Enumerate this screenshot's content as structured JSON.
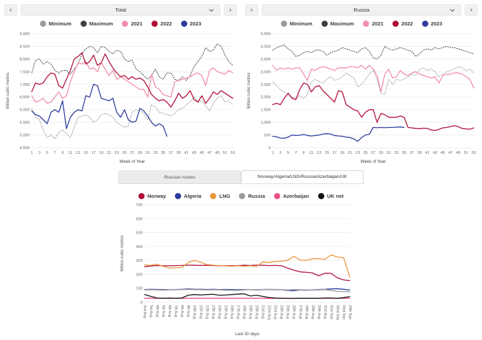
{
  "icons": {
    "prev": "‹",
    "next": "›"
  },
  "top_left": {
    "selector": "Total",
    "chart_data": {
      "type": "line",
      "title": "Total",
      "ylabel": "Million cubic metres",
      "xlabel": "Week of Year",
      "ylim": [
        4500,
        9000
      ],
      "y_step": 500,
      "grid": true,
      "legend_position": "top",
      "x_count": 53,
      "x_tick_every": 2,
      "x_tick_rotate": 0,
      "x_ticks": [
        "1",
        "3",
        "5",
        "7",
        "9",
        "11",
        "13",
        "15",
        "17",
        "19",
        "21",
        "23",
        "25",
        "27",
        "29",
        "31",
        "33",
        "35",
        "37",
        "39",
        "41",
        "43",
        "45",
        "47",
        "49",
        "51",
        "53"
      ],
      "series": [
        {
          "name": "Minimum",
          "color": "#9b9b9b",
          "dash": true,
          "values": [
            6050,
            5700,
            5600,
            5200,
            4900,
            5000,
            4850,
            5100,
            5200,
            5050,
            4900,
            5300,
            5700,
            5750,
            5800,
            5700,
            5500,
            5600,
            5800,
            5850,
            5800,
            5700,
            5500,
            5400,
            5300,
            5350,
            5900,
            6000,
            5950,
            5850,
            5600,
            6200,
            6100,
            5900,
            5850,
            5800,
            5750,
            5850,
            6000,
            6050,
            6200,
            6300,
            6500,
            6300,
            6350,
            6150,
            5950,
            6250,
            6450,
            6550,
            6300,
            6350,
            6200
          ]
        },
        {
          "name": "Maximum",
          "color": "#3f3f3f",
          "dash": true,
          "values": [
            7450,
            7950,
            8000,
            7800,
            7900,
            7800,
            7550,
            7450,
            7550,
            7550,
            7400,
            7600,
            7800,
            8200,
            8400,
            8500,
            8450,
            8250,
            8500,
            8450,
            8300,
            8200,
            8350,
            8300,
            8000,
            7900,
            7950,
            7600,
            7500,
            7350,
            7200,
            7350,
            7600,
            7300,
            7200,
            7450,
            7450,
            7200,
            7150,
            7300,
            7150,
            7350,
            7700,
            7900,
            8100,
            8450,
            8300,
            8350,
            8600,
            8500,
            8150,
            7900,
            7750
          ]
        },
        {
          "name": "2021",
          "color": "#f18ea8",
          "dash": false,
          "values": [
            6550,
            6300,
            6350,
            6450,
            6250,
            6300,
            6500,
            6700,
            6450,
            6550,
            7100,
            7500,
            7850,
            7800,
            7900,
            7600,
            7650,
            7500,
            7850,
            7600,
            7350,
            7550,
            7200,
            7300,
            7200,
            7100,
            7000,
            6900,
            6800,
            6800,
            6500,
            7400,
            6900,
            6800,
            6600,
            6550,
            6500,
            7100,
            7150,
            7200,
            7250,
            7300,
            7400,
            7450,
            7350,
            6950,
            7550,
            7650,
            7500,
            7450,
            7400,
            7550,
            7450
          ]
        },
        {
          "name": "2022",
          "color": "#b00d36",
          "dash": false,
          "values": [
            6700,
            7050,
            7000,
            7050,
            7300,
            7450,
            7400,
            6950,
            6850,
            7200,
            7550,
            8000,
            8100,
            8250,
            7800,
            7900,
            8150,
            7750,
            7850,
            8200,
            7900,
            7650,
            7450,
            7300,
            7350,
            7200,
            7300,
            7200,
            7250,
            7150,
            6900,
            6600,
            6450,
            6350,
            6400,
            6300,
            6100,
            6350,
            6650,
            6450,
            6550,
            6750,
            6400,
            6300,
            6550,
            6250,
            6450,
            6700,
            6600,
            6750,
            6650,
            6550,
            6450
          ]
        },
        {
          "name": "2023",
          "color": "#2c3a9e",
          "dash": false,
          "values": [
            5950,
            5800,
            5750,
            5600,
            5450,
            5900,
            6000,
            5900,
            6350,
            5250,
            5700,
            5900,
            6000,
            5950,
            6550,
            6500,
            7000,
            6950,
            6450,
            6400,
            6350,
            6450,
            5900,
            5700,
            6000,
            5600,
            5500,
            5550,
            6050,
            5950,
            5750,
            5500,
            5350,
            5450,
            5350,
            4950
          ]
        }
      ]
    }
  },
  "top_right": {
    "selector": "Russia",
    "chart_data": {
      "type": "line",
      "title": "Russia",
      "ylabel": "Million cubic metres",
      "xlabel": "Week of Year",
      "ylim": [
        0,
        4500
      ],
      "y_step": 500,
      "grid": true,
      "legend_position": "top",
      "x_count": 53,
      "x_tick_every": 2,
      "x_tick_rotate": 0,
      "x_ticks": [
        "1",
        "3",
        "5",
        "7",
        "9",
        "11",
        "13",
        "15",
        "17",
        "19",
        "21",
        "23",
        "25",
        "27",
        "29",
        "31",
        "33",
        "35",
        "37",
        "39",
        "41",
        "43",
        "45",
        "47",
        "49",
        "51",
        "53"
      ],
      "series": [
        {
          "name": "Minimum",
          "color": "#9b9b9b",
          "dash": true,
          "values": [
            2600,
            2450,
            2300,
            2200,
            2100,
            2000,
            1950,
            2050,
            1950,
            2100,
            2600,
            2700,
            2600,
            2550,
            2700,
            2800,
            2650,
            2700,
            2800,
            2950,
            2850,
            2750,
            2400,
            2500,
            2700,
            2900,
            3050,
            2700,
            2150,
            2100,
            2700,
            2500,
            2700,
            2650,
            2700,
            2800,
            2900,
            2850,
            3100,
            3150,
            3050,
            3100,
            3000,
            2800,
            2900,
            3000,
            3050,
            3100,
            3200,
            3150,
            3050,
            3100,
            2950
          ]
        },
        {
          "name": "Maximum",
          "color": "#3f3f3f",
          "dash": true,
          "values": [
            3850,
            3950,
            4000,
            4050,
            3900,
            3800,
            3600,
            3650,
            3750,
            3800,
            3750,
            3850,
            3850,
            3800,
            3650,
            3750,
            3800,
            3850,
            3950,
            3900,
            3850,
            3800,
            3750,
            3900,
            3950,
            3800,
            3550,
            3500,
            3650,
            4000,
            3900,
            3850,
            3900,
            3950,
            3900,
            3850,
            3800,
            3600,
            3700,
            3850,
            3900,
            3850,
            3950,
            3900,
            3950,
            4000,
            3950,
            3950,
            3900,
            3850,
            3800,
            3750,
            3700
          ]
        },
        {
          "name": "2021",
          "color": "#f18ea8",
          "dash": false,
          "values": [
            3250,
            3050,
            3150,
            3100,
            3150,
            3100,
            3150,
            3150,
            2900,
            2650,
            3100,
            3050,
            3150,
            3200,
            3150,
            3100,
            3050,
            3150,
            3150,
            3150,
            3200,
            3200,
            3150,
            3250,
            3100,
            3250,
            3100,
            2850,
            2200,
            2900,
            3100,
            2750,
            2800,
            3050,
            2900,
            2850,
            2950,
            3000,
            2900,
            2850,
            2800,
            2750,
            2800,
            2550,
            2850,
            2900,
            2900,
            2950,
            2950,
            2900,
            2800,
            2700,
            2350
          ]
        },
        {
          "name": "2022",
          "color": "#b00d36",
          "dash": false,
          "values": [
            1700,
            1750,
            1700,
            1950,
            2150,
            1950,
            1900,
            2300,
            2550,
            2500,
            2200,
            2400,
            2450,
            2250,
            2100,
            1950,
            1800,
            2250,
            2200,
            1700,
            1600,
            1500,
            1450,
            1200,
            1400,
            1500,
            1500,
            1000,
            1350,
            1300,
            1200,
            1200,
            1200,
            1250,
            1200,
            800,
            780,
            760,
            750,
            770,
            760,
            700,
            680,
            720,
            780,
            800,
            830,
            870,
            830,
            760,
            740,
            730,
            780
          ]
        },
        {
          "name": "2023",
          "color": "#2c3a9e",
          "dash": false,
          "values": [
            450,
            430,
            380,
            370,
            420,
            500,
            480,
            490,
            520,
            480,
            460,
            480,
            500,
            540,
            550,
            540,
            480,
            460,
            450,
            420,
            400,
            350,
            250,
            400,
            500,
            530,
            800,
            790,
            800,
            790,
            800,
            800,
            810,
            820,
            800
          ]
        }
      ]
    }
  },
  "bottom": {
    "tabs": [
      {
        "label": "Russian routes",
        "active": false
      },
      {
        "label": "Norway/Algeria/LNG/Russia/Azerbaijan/UK",
        "active": true
      }
    ],
    "chart_data": {
      "type": "line",
      "title": "Norway/Algeria/LNG/Russia/Azerbaijan/UK",
      "ylabel": "Million cubic metres",
      "xlabel": "Last 30 days",
      "ylim": [
        0,
        700
      ],
      "y_step": 100,
      "grid": true,
      "legend_position": "top",
      "x_count": 34,
      "x_tick_every": 1,
      "x_tick_rotate": 90,
      "x_ticks": [
        "2nd Aug",
        "3rd Aug",
        "4th Aug",
        "5th Aug",
        "6th Aug",
        "7th Aug",
        "8th Aug",
        "9th Aug",
        "10th Aug",
        "11th Aug",
        "12th Aug",
        "13th Aug",
        "14th Aug",
        "15th Aug",
        "16th Aug",
        "17th Aug",
        "18th Aug",
        "19th Aug",
        "20th Aug",
        "21st Aug",
        "22nd Aug",
        "23rd Aug",
        "24th Aug",
        "25th Aug",
        "26th Aug",
        "27th Aug",
        "28th Aug",
        "29th Aug",
        "30th Aug",
        "31st Aug",
        "01st Sep",
        "02nd Sep",
        "03rd Sep",
        "04th Sep"
      ],
      "series": [
        {
          "name": "Norway",
          "color": "#b00d36",
          "dash": false,
          "values": [
            255,
            260,
            263,
            262,
            262,
            263,
            264,
            266,
            265,
            264,
            265,
            263,
            262,
            263,
            262,
            263,
            265,
            264,
            266,
            265,
            263,
            264,
            262,
            245,
            230,
            218,
            215,
            210,
            190,
            208,
            207,
            175,
            160,
            155
          ]
        },
        {
          "name": "Algeria",
          "color": "#2c3a9e",
          "dash": false,
          "values": [
            90,
            92,
            91,
            90,
            89,
            90,
            92,
            95,
            93,
            92,
            91,
            92,
            90,
            91,
            90,
            89,
            90,
            89,
            88,
            90,
            91,
            90,
            89,
            85,
            83,
            88,
            86,
            88,
            90,
            92,
            95,
            97,
            92,
            88
          ]
        },
        {
          "name": "LNG",
          "color": "#e9973b",
          "dash": false,
          "values": [
            268,
            265,
            272,
            258,
            246,
            247,
            250,
            285,
            300,
            288,
            270,
            266,
            263,
            262,
            258,
            262,
            258,
            262,
            256,
            290,
            285,
            292,
            295,
            300,
            330,
            302,
            300,
            312,
            312,
            308,
            340,
            325,
            320,
            180
          ]
        },
        {
          "name": "Russia",
          "color": "#9b9b9b",
          "dash": false,
          "values": [
            88,
            89,
            88,
            87,
            88,
            89,
            90,
            92,
            90,
            89,
            88,
            89,
            88,
            87,
            86,
            85,
            88,
            89,
            90,
            91,
            92,
            91,
            90,
            88,
            90,
            89,
            88,
            87,
            88,
            90,
            85,
            78,
            76,
            75
          ]
        },
        {
          "name": "Azerbaijan",
          "color": "#ee4f88",
          "dash": false,
          "values": [
            28,
            28,
            28,
            28,
            28,
            28,
            28,
            28,
            28,
            28,
            28,
            28,
            28,
            28,
            28,
            28,
            28,
            28,
            28,
            28,
            28,
            28,
            28,
            28,
            28,
            28,
            28,
            28,
            28,
            28,
            28,
            28,
            28,
            28
          ]
        },
        {
          "name": "UK net",
          "color": "#121212",
          "dash": false,
          "values": [
            55,
            42,
            30,
            28,
            30,
            28,
            30,
            50,
            55,
            52,
            55,
            57,
            50,
            52,
            55,
            58,
            60,
            45,
            50,
            42,
            34,
            30,
            28,
            27,
            27,
            28,
            28,
            28,
            28,
            30,
            30,
            28,
            33,
            40
          ]
        }
      ]
    }
  }
}
